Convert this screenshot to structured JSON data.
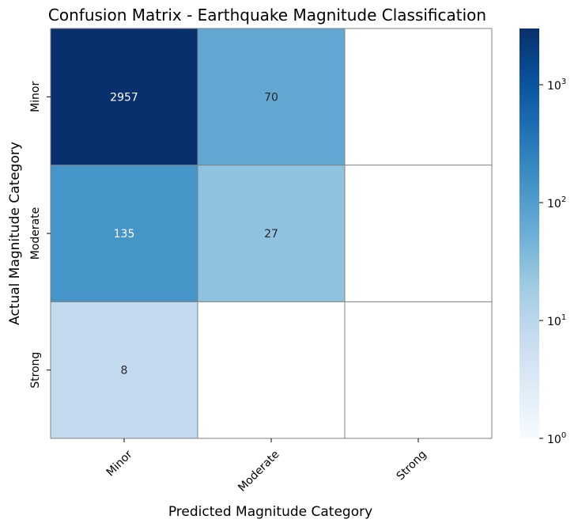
{
  "chart_data": {
    "type": "heatmap",
    "title": "Confusion Matrix - Earthquake Magnitude Classification",
    "xlabel": "Predicted Magnitude Category",
    "ylabel": "Actual Magnitude Category",
    "x_categories": [
      "Minor",
      "Moderate",
      "Strong"
    ],
    "y_categories": [
      "Minor",
      "Moderate",
      "Strong"
    ],
    "values": [
      [
        2957,
        70,
        0
      ],
      [
        135,
        27,
        0
      ],
      [
        8,
        0,
        0
      ]
    ],
    "cell_labels": [
      [
        "2957",
        "70",
        ""
      ],
      [
        "135",
        "27",
        ""
      ],
      [
        "8",
        "",
        ""
      ]
    ],
    "colormap": "Blues",
    "color_scale": "log",
    "colorbar": {
      "min": 1,
      "max": 3000,
      "ticks": [
        {
          "value": 1,
          "base": "10",
          "exp": "0"
        },
        {
          "value": 10,
          "base": "10",
          "exp": "1"
        },
        {
          "value": 100,
          "base": "10",
          "exp": "2"
        },
        {
          "value": 1000,
          "base": "10",
          "exp": "3"
        }
      ]
    },
    "grid": true,
    "colors": {
      "cell_border": "#808080",
      "text_dark": "#262626",
      "text_light": "#ffffff"
    }
  }
}
